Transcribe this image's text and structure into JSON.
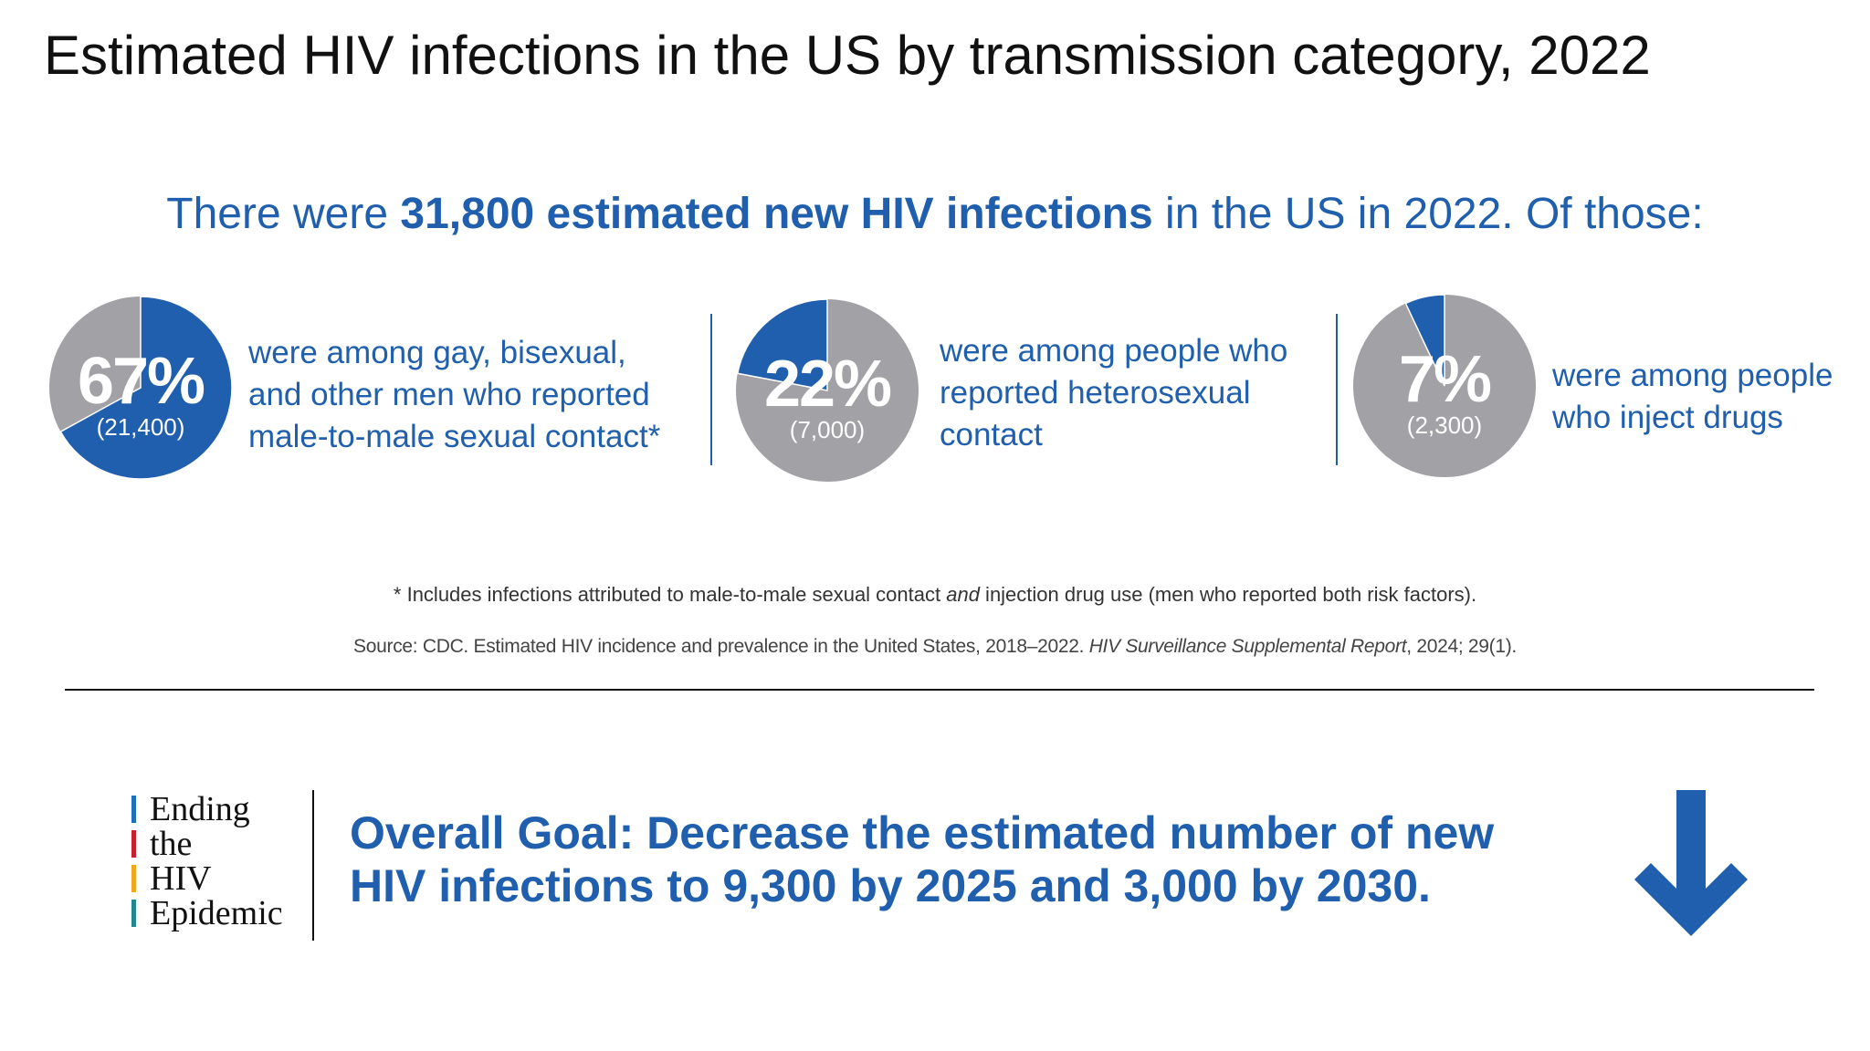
{
  "title": "Estimated HIV infections in the US by transmission category, 2022",
  "subheading": {
    "pre": "There were ",
    "bold": "31,800 estimated new HIV infections",
    "post": " in the US in 2022. Of those:"
  },
  "colors": {
    "blue": "#1f5fad",
    "grey": "#a2a2a6"
  },
  "categories": [
    {
      "percent_label": "67%",
      "percent": 67,
      "count": "(21,400)",
      "lines": [
        "were among gay, bisexual,",
        "and other men who reported",
        "male-to-male sexual contact*"
      ]
    },
    {
      "percent_label": "22%",
      "percent": 22,
      "count": "(7,000)",
      "lines": [
        "were among people who",
        "reported heterosexual",
        "contact"
      ]
    },
    {
      "percent_label": "7%",
      "percent": 7,
      "count": "(2,300)",
      "lines": [
        "were among people",
        "who inject drugs"
      ]
    }
  ],
  "footnote": {
    "pre": "* Includes infections attributed to male-to-male sexual contact ",
    "italic": "and",
    "post": " injection drug use (men who reported both risk factors)."
  },
  "source": {
    "pre": "Source: CDC. Estimated HIV incidence and prevalence in the United States, 2018–2022. ",
    "italic": "HIV Surveillance Supplemental Report",
    "post": ", 2024; 29(1)."
  },
  "logo": {
    "lines": [
      "Ending",
      "the",
      "HIV",
      "Epidemic"
    ],
    "bar_colors": [
      "#1f6fbf",
      "#c8202f",
      "#f2a81d",
      "#1e8a8f"
    ]
  },
  "goal": {
    "bold": "Overall Goal:",
    "line1_rest": " Decrease the estimated number of new",
    "line2": "HIV infections to 9,300 by 2025 and 3,000 by 2030."
  },
  "arrow_icon": "arrow-down-icon"
}
